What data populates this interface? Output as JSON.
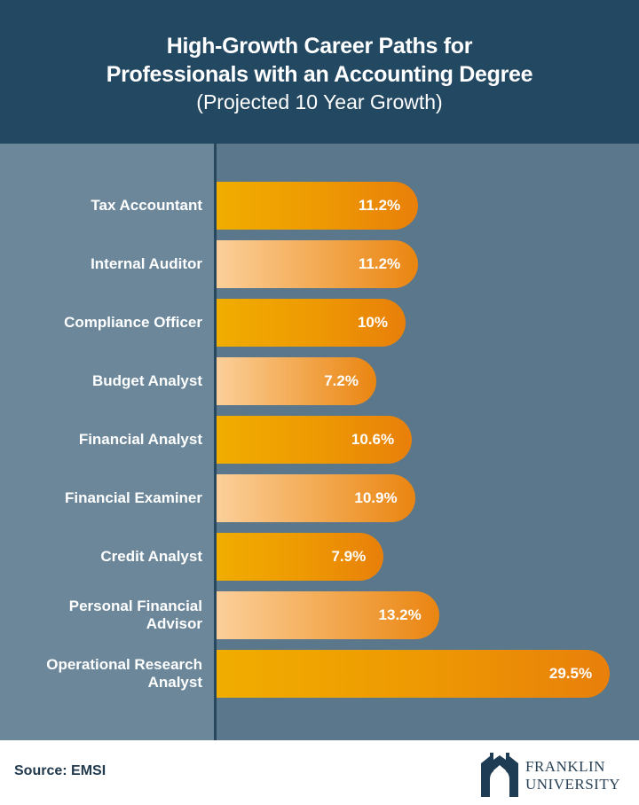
{
  "header": {
    "title_line1": "High-Growth Career Paths for",
    "title_line2": "Professionals with an Accounting Degree",
    "subtitle": "(Projected 10 Year Growth)"
  },
  "colors": {
    "header_bg": "#234862",
    "chart_bg": "#5b778b",
    "label_panel_bg": "#6b8799",
    "bar_orange": "#ee9a02",
    "bar_light": "#fbcf9a"
  },
  "chart_data": {
    "type": "bar",
    "orientation": "horizontal",
    "title": "High-Growth Career Paths for Professionals with an Accounting Degree",
    "subtitle": "(Projected 10 Year Growth)",
    "categories": [
      "Tax Accountant",
      "Internal Auditor",
      "Compliance Officer",
      "Budget Analyst",
      "Financial Analyst",
      "Financial Examiner",
      "Credit Analyst",
      "Personal Financial Advisor",
      "Operational Research Analyst"
    ],
    "category_lines": [
      [
        "Tax Accountant"
      ],
      [
        "Internal Auditor"
      ],
      [
        "Compliance Officer"
      ],
      [
        "Budget Analyst"
      ],
      [
        "Financial Analyst"
      ],
      [
        "Financial Examiner"
      ],
      [
        "Credit Analyst"
      ],
      [
        "Personal Financial",
        "Advisor"
      ],
      [
        "Operational Research",
        "Analyst"
      ]
    ],
    "values": [
      11.2,
      11.2,
      10,
      7.2,
      10.6,
      10.9,
      7.9,
      13.2,
      29.5
    ],
    "value_labels": [
      "11.2%",
      "11.2%",
      "10%",
      "7.2%",
      "10.6%",
      "10.9%",
      "7.9%",
      "13.2%",
      "29.5%"
    ],
    "unit": "%",
    "xlabel": "",
    "ylabel": "",
    "grid": false
  },
  "footer": {
    "source": "Source: EMSI",
    "logo_line1": "FRANKLIN",
    "logo_line2": "UNIVERSITY"
  }
}
